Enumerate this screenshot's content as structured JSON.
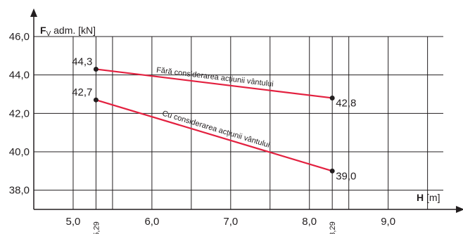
{
  "chart_data": {
    "type": "line",
    "colors": {
      "line": "#e3203f",
      "axis": "#231f20",
      "grid": "#231f20"
    },
    "grid": true,
    "xlim": [
      4.5,
      9.7
    ],
    "ylim": [
      37.0,
      46.0
    ],
    "x_ticks": [
      "5,0",
      "6,0",
      "7,0",
      "8,0",
      "9,0"
    ],
    "x_tick_values": [
      5.0,
      6.0,
      7.0,
      8.0,
      9.0
    ],
    "x_marked": [
      "5,29",
      "8,29"
    ],
    "x_marked_values": [
      5.29,
      8.29
    ],
    "y_ticks": [
      "46,0",
      "44,0",
      "42,0",
      "40,0",
      "38,0"
    ],
    "y_tick_values": [
      46.0,
      44.0,
      42.0,
      40.0,
      38.0
    ],
    "ylabel": {
      "main": "F",
      "sub": "V",
      "rest": " adm. [kN]"
    },
    "xlabel": {
      "main": "H",
      "rest": " [m]"
    },
    "series": [
      {
        "name": "Fără considerarea acțiunii vântului",
        "x": [
          5.29,
          8.29
        ],
        "y": [
          44.3,
          42.8
        ],
        "labels": [
          "44,3",
          "42,8"
        ]
      },
      {
        "name": "Cu considerarea acțiunii vântului",
        "x": [
          5.29,
          8.29
        ],
        "y": [
          42.7,
          39.0
        ],
        "labels": [
          "42,7",
          "39,0"
        ]
      }
    ]
  }
}
